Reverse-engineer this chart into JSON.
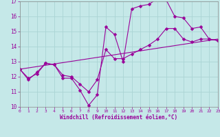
{
  "xlabel": "Windchill (Refroidissement éolien,°C)",
  "bg_color": "#c5e8e8",
  "grid_color": "#aad4d4",
  "line_color": "#990099",
  "xmin": 0,
  "xmax": 23,
  "ymin": 10,
  "ymax": 17,
  "xticks": [
    0,
    1,
    2,
    3,
    4,
    5,
    6,
    7,
    8,
    9,
    10,
    11,
    12,
    13,
    14,
    15,
    16,
    17,
    18,
    19,
    20,
    21,
    22,
    23
  ],
  "yticks": [
    10,
    11,
    12,
    13,
    14,
    15,
    16,
    17
  ],
  "series1_x": [
    0,
    1,
    2,
    3,
    4,
    5,
    6,
    7,
    8,
    9,
    10,
    11,
    12,
    13,
    14,
    15,
    16,
    17,
    18,
    19,
    20,
    21,
    22,
    23
  ],
  "series1_y": [
    12.5,
    11.8,
    12.3,
    12.9,
    12.8,
    11.9,
    11.9,
    11.1,
    10.1,
    10.8,
    15.3,
    14.8,
    13.0,
    16.5,
    16.7,
    16.8,
    17.2,
    17.1,
    16.0,
    15.9,
    15.2,
    15.3,
    14.5,
    14.4
  ],
  "series2_x": [
    0,
    1,
    2,
    3,
    4,
    5,
    6,
    7,
    8,
    9,
    10,
    11,
    12,
    13,
    14,
    15,
    16,
    17,
    18,
    19,
    20,
    21,
    22,
    23
  ],
  "series2_y": [
    12.5,
    11.9,
    12.2,
    12.9,
    12.8,
    12.1,
    12.0,
    11.5,
    11.0,
    11.8,
    13.8,
    13.2,
    13.2,
    13.5,
    13.8,
    14.1,
    14.5,
    15.2,
    15.2,
    14.5,
    14.3,
    14.5,
    14.5,
    14.4
  ],
  "series3_x": [
    0,
    23
  ],
  "series3_y": [
    12.5,
    14.5
  ],
  "markersize": 2.5
}
